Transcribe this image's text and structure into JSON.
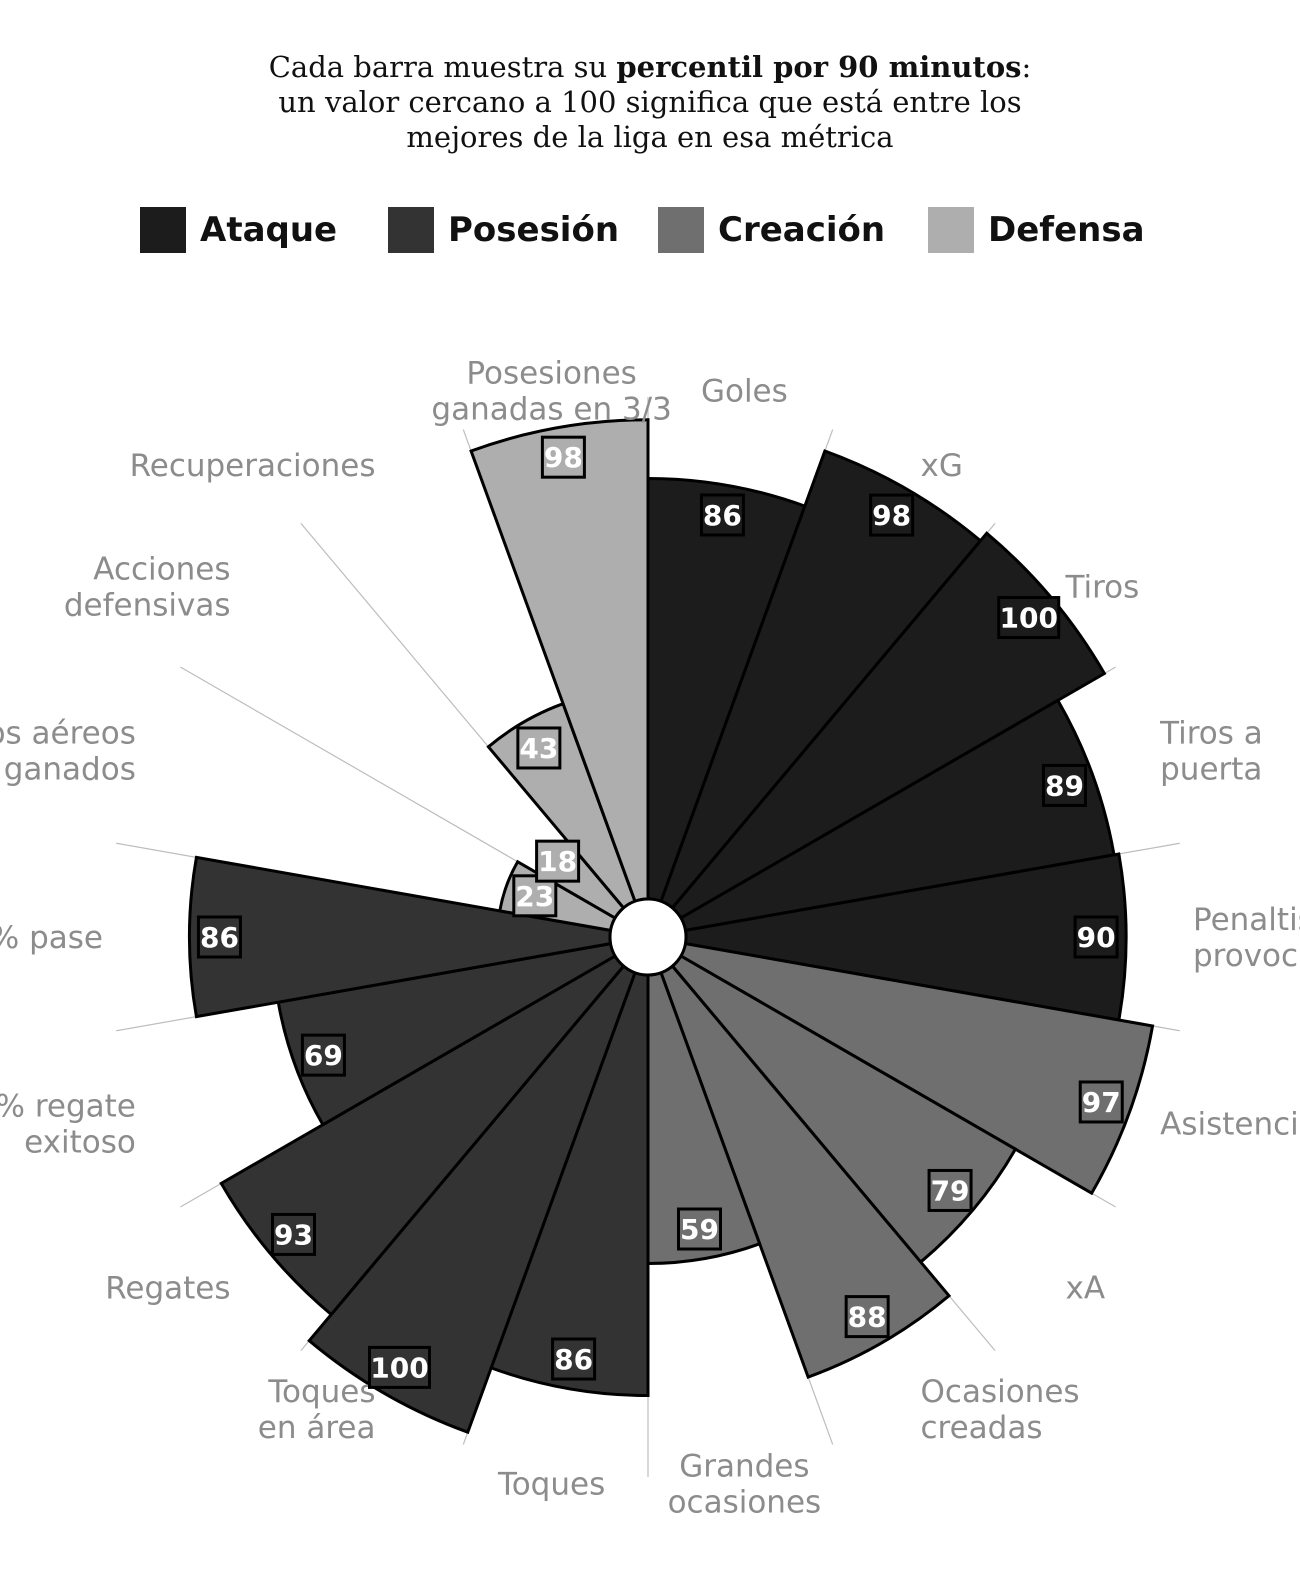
{
  "subtitle": {
    "part1": "Cada barra muestra su ",
    "bold": "percentil por 90 minutos",
    "part2": ":",
    "line2": "un valor cercano a 100 significa que está entre los",
    "line3": "mejores de la liga en esa métrica"
  },
  "legend": [
    {
      "name": "Ataque",
      "color": "#1c1c1c"
    },
    {
      "name": "Posesión",
      "color": "#333333"
    },
    {
      "name": "Creación",
      "color": "#6f6f6f"
    },
    {
      "name": "Defensa",
      "color": "#aeaeae"
    }
  ],
  "chart_data": {
    "type": "polar-bar",
    "scale_max": 100,
    "categories": [
      {
        "label": "Goles",
        "group": "Ataque",
        "value": 86
      },
      {
        "label": "xG",
        "group": "Ataque",
        "value": 98
      },
      {
        "label": "Tiros",
        "group": "Ataque",
        "value": 100
      },
      {
        "label": "Tiros a puerta",
        "group": "Ataque",
        "value": 89
      },
      {
        "label": "Penaltis provocados",
        "group": "Ataque",
        "value": 90
      },
      {
        "label": "Asistencias",
        "group": "Creación",
        "value": 97
      },
      {
        "label": "xA",
        "group": "Creación",
        "value": 79
      },
      {
        "label": "Ocasiones creadas",
        "group": "Creación",
        "value": 88
      },
      {
        "label": "Grandes ocasiones",
        "group": "Creación",
        "value": 59
      },
      {
        "label": "Toques",
        "group": "Posesión",
        "value": 86
      },
      {
        "label": "Toques en área",
        "group": "Posesión",
        "value": 100
      },
      {
        "label": "Regates",
        "group": "Posesión",
        "value": 93
      },
      {
        "label": "% regate exitoso",
        "group": "Posesión",
        "value": 69
      },
      {
        "label": "% pase",
        "group": "Posesión",
        "value": 86
      },
      {
        "label": "Duelos aéreos ganados",
        "group": "Defensa",
        "value": 23
      },
      {
        "label": "Acciones defensivas",
        "group": "Defensa",
        "value": 18
      },
      {
        "label": "Recuperaciones",
        "group": "Defensa",
        "value": 43
      },
      {
        "label": "Posesiones ganadas en 3/3",
        "group": "Defensa",
        "value": 98
      }
    ]
  }
}
